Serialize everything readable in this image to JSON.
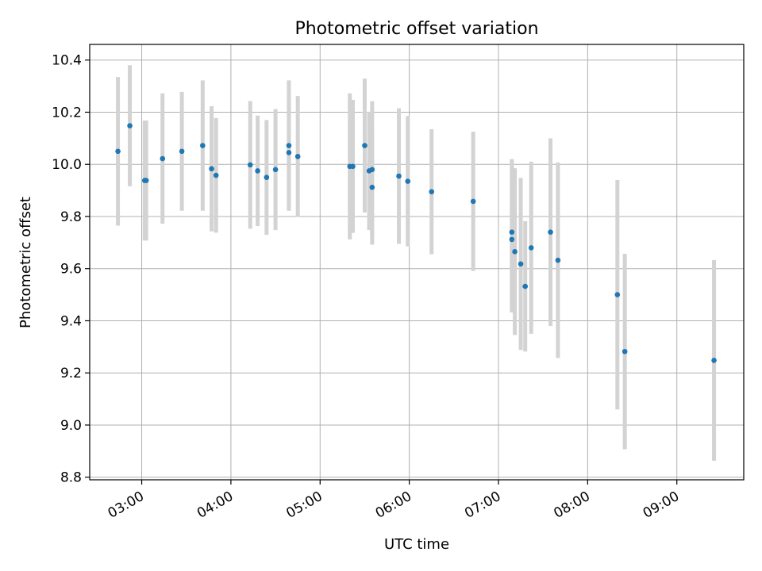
{
  "chart_data": {
    "type": "scatter",
    "title": "Photometric offset variation",
    "xlabel": "UTC time",
    "ylabel": "Photometric offset",
    "x_unit": "UTC time (HH:MM)",
    "xlim": [
      "02:25",
      "09:45"
    ],
    "ylim": [
      8.79,
      10.46
    ],
    "xticks": [
      "03:00",
      "04:00",
      "05:00",
      "06:00",
      "07:00",
      "08:00",
      "09:00"
    ],
    "yticks": [
      "8.8",
      "9.0",
      "9.2",
      "9.4",
      "9.6",
      "9.8",
      "10.0",
      "10.2",
      "10.4"
    ],
    "grid": true,
    "colors": {
      "point": "#1f77b4",
      "errorbar": "#d3d3d3",
      "grid": "#b0b0b0"
    },
    "series": [
      {
        "points": [
          {
            "x": "02:44",
            "y": 10.05,
            "err": 0.285
          },
          {
            "x": "02:52",
            "y": 10.148,
            "err": 0.232
          },
          {
            "x": "03:02",
            "y": 9.938,
            "err": 0.23
          },
          {
            "x": "03:03",
            "y": 9.938,
            "err": 0.23
          },
          {
            "x": "03:14",
            "y": 10.022,
            "err": 0.25
          },
          {
            "x": "03:27",
            "y": 10.05,
            "err": 0.228
          },
          {
            "x": "03:41",
            "y": 10.072,
            "err": 0.25
          },
          {
            "x": "03:47",
            "y": 9.983,
            "err": 0.24
          },
          {
            "x": "03:50",
            "y": 9.958,
            "err": 0.22
          },
          {
            "x": "04:13",
            "y": 9.998,
            "err": 0.245
          },
          {
            "x": "04:18",
            "y": 9.975,
            "err": 0.212
          },
          {
            "x": "04:24",
            "y": 9.95,
            "err": 0.22
          },
          {
            "x": "04:30",
            "y": 9.98,
            "err": 0.232
          },
          {
            "x": "04:39",
            "y": 10.045,
            "err": 0.215
          },
          {
            "x": "04:39",
            "y": 10.072,
            "err": 0.25
          },
          {
            "x": "04:45",
            "y": 10.03,
            "err": 0.232
          },
          {
            "x": "05:20",
            "y": 9.992,
            "err": 0.28
          },
          {
            "x": "05:22",
            "y": 9.992,
            "err": 0.255
          },
          {
            "x": "05:30",
            "y": 10.072,
            "err": 0.257
          },
          {
            "x": "05:33",
            "y": 9.975,
            "err": 0.227
          },
          {
            "x": "05:35",
            "y": 9.98,
            "err": 0.262
          },
          {
            "x": "05:35",
            "y": 9.912,
            "err": 0.22
          },
          {
            "x": "05:53",
            "y": 9.955,
            "err": 0.26
          },
          {
            "x": "05:59",
            "y": 9.935,
            "err": 0.25
          },
          {
            "x": "06:15",
            "y": 9.895,
            "err": 0.24
          },
          {
            "x": "06:43",
            "y": 9.858,
            "err": 0.267
          },
          {
            "x": "07:09",
            "y": 9.74,
            "err": 0.28
          },
          {
            "x": "07:09",
            "y": 9.712,
            "err": 0.28
          },
          {
            "x": "07:11",
            "y": 9.665,
            "err": 0.32
          },
          {
            "x": "07:15",
            "y": 9.618,
            "err": 0.33
          },
          {
            "x": "07:18",
            "y": 9.532,
            "err": 0.25
          },
          {
            "x": "07:22",
            "y": 9.68,
            "err": 0.33
          },
          {
            "x": "07:35",
            "y": 9.74,
            "err": 0.36
          },
          {
            "x": "07:40",
            "y": 9.632,
            "err": 0.375
          },
          {
            "x": "08:20",
            "y": 9.5,
            "err": 0.44
          },
          {
            "x": "08:25",
            "y": 9.282,
            "err": 0.375
          },
          {
            "x": "09:25",
            "y": 9.248,
            "err": 0.385
          }
        ]
      }
    ]
  }
}
